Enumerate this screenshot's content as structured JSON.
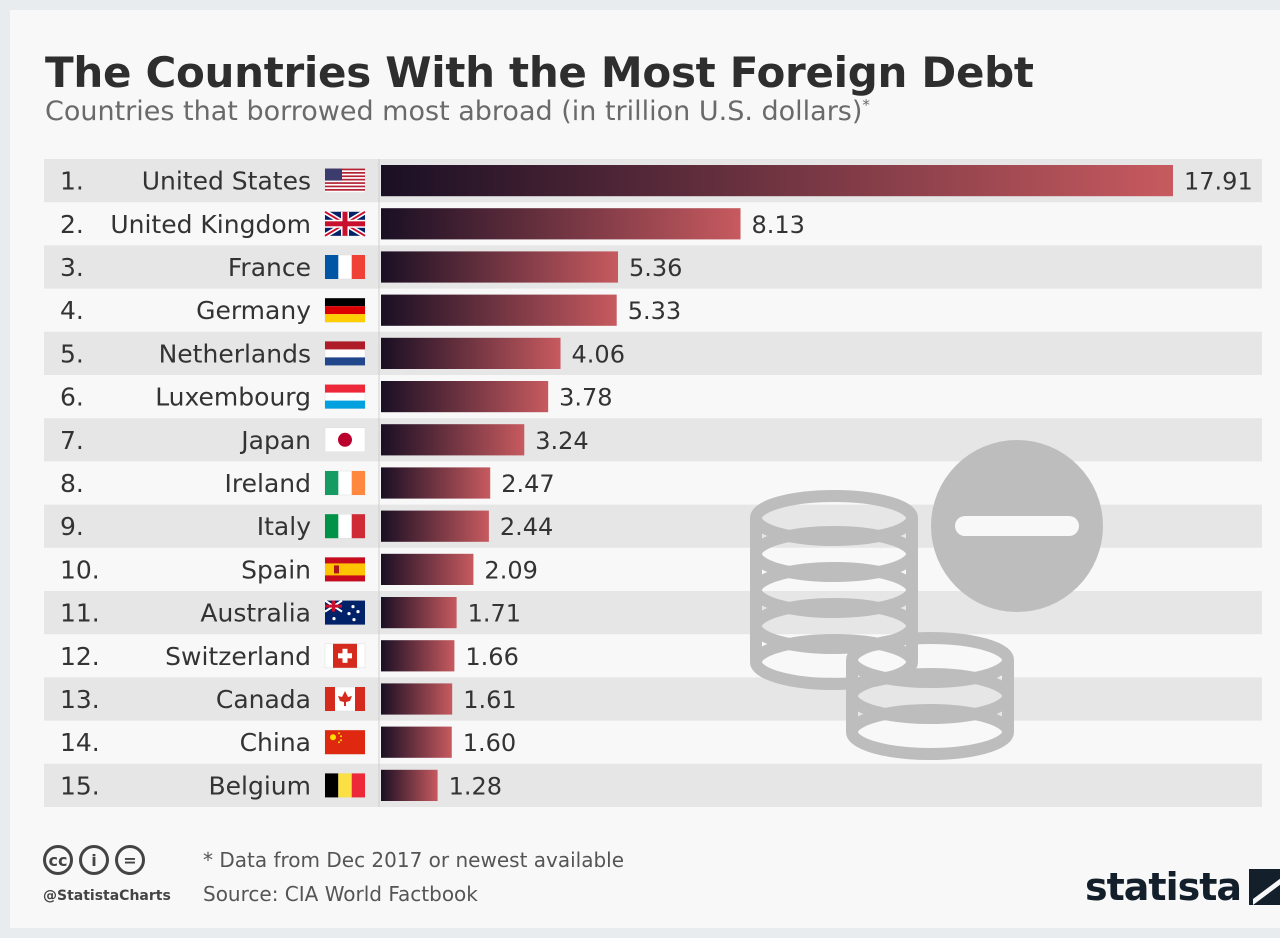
{
  "title": "The Countries With the Most Foreign Debt",
  "subtitle": "Countries that borrowed most abroad (in trillion U.S. dollars)",
  "subtitle_mark": "*",
  "footer": {
    "note": "* Data from Dec 2017 or newest available",
    "source": "Source: CIA World Factbook",
    "handle": "@StatistaCharts",
    "license_icons": [
      "cc",
      "i",
      "="
    ],
    "brand": "statista"
  },
  "colors": {
    "bar_start": "#1a0f24",
    "bar_end": "#c75a5f",
    "stripe": "#e6e6e6",
    "text": "#333333"
  },
  "illustration": "coins-minus-icon",
  "chart_data": {
    "type": "bar",
    "orientation": "horizontal",
    "title": "The Countries With the Most Foreign Debt",
    "subtitle": "Countries that borrowed most abroad (in trillion U.S. dollars)",
    "ranks": [
      "1.",
      "2.",
      "3.",
      "4.",
      "5.",
      "6.",
      "7.",
      "8.",
      "9.",
      "10.",
      "11.",
      "12.",
      "13.",
      "14.",
      "15."
    ],
    "categories": [
      "United States",
      "United Kingdom",
      "France",
      "Germany",
      "Netherlands",
      "Luxembourg",
      "Japan",
      "Ireland",
      "Italy",
      "Spain",
      "Australia",
      "Switzerland",
      "Canada",
      "China",
      "Belgium"
    ],
    "flags": [
      "us-flag-icon",
      "uk-flag-icon",
      "france-flag-icon",
      "germany-flag-icon",
      "netherlands-flag-icon",
      "luxembourg-flag-icon",
      "japan-flag-icon",
      "ireland-flag-icon",
      "italy-flag-icon",
      "spain-flag-icon",
      "australia-flag-icon",
      "switzerland-flag-icon",
      "canada-flag-icon",
      "china-flag-icon",
      "belgium-flag-icon"
    ],
    "values": [
      17.91,
      8.13,
      5.36,
      5.33,
      4.06,
      3.78,
      3.24,
      2.47,
      2.44,
      2.09,
      1.71,
      1.66,
      1.61,
      1.6,
      1.28
    ],
    "value_labels": [
      "17.91",
      "8.13",
      "5.36",
      "5.33",
      "4.06",
      "3.78",
      "3.24",
      "2.47",
      "2.44",
      "2.09",
      "1.71",
      "1.66",
      "1.61",
      "1.60",
      "1.28"
    ],
    "xlim": [
      0,
      17.91
    ],
    "grid": false,
    "legend": "none"
  }
}
